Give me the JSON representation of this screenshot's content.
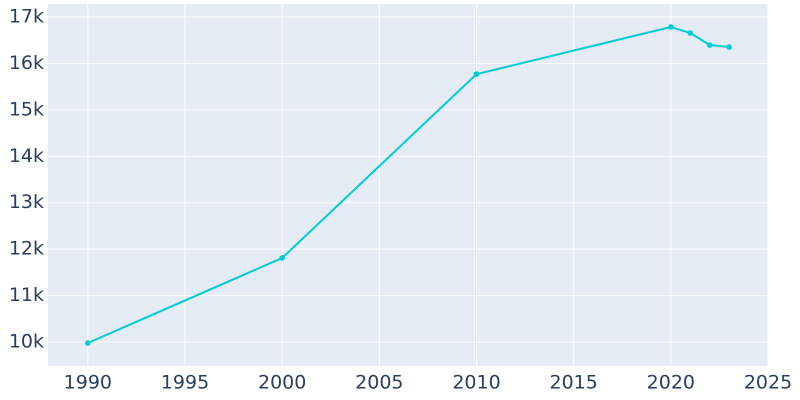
{
  "chart_data": {
    "type": "line",
    "x": [
      1990,
      2000,
      2010,
      2020,
      2021,
      2022,
      2023
    ],
    "series": [
      {
        "color": "#00ccd3",
        "values": [
          9978,
          11810,
          15770,
          16785,
          16655,
          16397,
          16354
        ]
      }
    ],
    "xlim": [
      1987.95,
      2025
    ],
    "xticks": [
      1990,
      1995,
      2000,
      2005,
      2010,
      2015,
      2020,
      2025
    ],
    "ylim": [
      9483,
      17280
    ],
    "yticks": [
      {
        "value": 10000,
        "label": "10k"
      },
      {
        "value": 11000,
        "label": "11k"
      },
      {
        "value": 12000,
        "label": "12k"
      },
      {
        "value": 13000,
        "label": "13k"
      },
      {
        "value": 14000,
        "label": "14k"
      },
      {
        "value": 15000,
        "label": "15k"
      },
      {
        "value": 16000,
        "label": "16k"
      },
      {
        "value": 17000,
        "label": "17k"
      }
    ],
    "grid": true,
    "plot_background": "#e5ecf6",
    "markers": true
  }
}
